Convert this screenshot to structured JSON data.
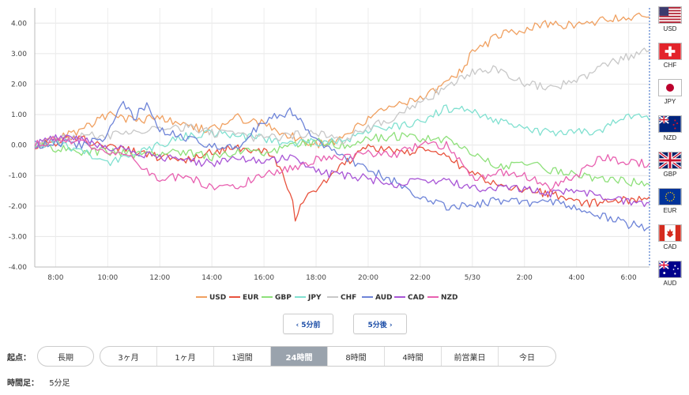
{
  "chart_data": {
    "type": "line",
    "ylim": [
      -4,
      4.5
    ],
    "y_ticks": [
      "4.00",
      "3.00",
      "2.00",
      "1.00",
      "0.00",
      "-1.00",
      "-2.00",
      "-3.00",
      "-4.00"
    ],
    "x_ticks": [
      "8:00",
      "10:00",
      "12:00",
      "14:00",
      "16:00",
      "18:00",
      "20:00",
      "22:00",
      "5/30",
      "2:00",
      "4:00",
      "6:00"
    ],
    "x_range_hours": [
      7.2,
      30.8
    ],
    "grid": true,
    "legend_position": "bottom",
    "series": [
      {
        "name": "USD",
        "color": "#f0a060",
        "values": [
          [
            7.2,
            0.0
          ],
          [
            8,
            0.2
          ],
          [
            9,
            0.5
          ],
          [
            10,
            1.0
          ],
          [
            11,
            0.8
          ],
          [
            12,
            0.9
          ],
          [
            13,
            0.6
          ],
          [
            14,
            0.5
          ],
          [
            15,
            0.9
          ],
          [
            16,
            0.7
          ],
          [
            17,
            0.3
          ],
          [
            18,
            0.0
          ],
          [
            19,
            0.2
          ],
          [
            20,
            0.9
          ],
          [
            21,
            1.3
          ],
          [
            22,
            1.5
          ],
          [
            23,
            2.0
          ],
          [
            23.5,
            2.4
          ],
          [
            24,
            3.0
          ],
          [
            25,
            3.6
          ],
          [
            26,
            3.8
          ],
          [
            27,
            4.0
          ],
          [
            28,
            3.9
          ],
          [
            29,
            4.1
          ],
          [
            30,
            4.2
          ],
          [
            30.8,
            4.2
          ]
        ]
      },
      {
        "name": "EUR",
        "color": "#e8533e",
        "values": [
          [
            7.2,
            0.0
          ],
          [
            8,
            0.1
          ],
          [
            9,
            0.2
          ],
          [
            10,
            -0.1
          ],
          [
            11,
            -0.2
          ],
          [
            12,
            -0.4
          ],
          [
            13,
            -0.5
          ],
          [
            14,
            -0.2
          ],
          [
            15,
            -0.1
          ],
          [
            16,
            -0.2
          ],
          [
            16.5,
            -0.6
          ],
          [
            17,
            -1.5
          ],
          [
            17.2,
            -2.4
          ],
          [
            17.6,
            -1.7
          ],
          [
            18,
            -1.5
          ],
          [
            19,
            -0.7
          ],
          [
            20,
            0.0
          ],
          [
            21,
            -0.2
          ],
          [
            22,
            -0.2
          ],
          [
            23,
            -0.4
          ],
          [
            24,
            -0.9
          ],
          [
            25,
            -1.3
          ],
          [
            26,
            -1.5
          ],
          [
            27,
            -1.6
          ],
          [
            28,
            -1.9
          ],
          [
            29,
            -1.9
          ],
          [
            30,
            -1.8
          ],
          [
            30.8,
            -1.7
          ]
        ]
      },
      {
        "name": "GBP",
        "color": "#8ee07a",
        "values": [
          [
            7.2,
            0.0
          ],
          [
            8,
            -0.1
          ],
          [
            9,
            -0.2
          ],
          [
            10,
            -0.2
          ],
          [
            11,
            -0.3
          ],
          [
            12,
            -0.3
          ],
          [
            13,
            -0.2
          ],
          [
            14,
            -0.4
          ],
          [
            15,
            -0.2
          ],
          [
            16,
            -0.3
          ],
          [
            17,
            0.0
          ],
          [
            18,
            0.1
          ],
          [
            19,
            0.0
          ],
          [
            20,
            0.2
          ],
          [
            21,
            0.3
          ],
          [
            22,
            0.2
          ],
          [
            23,
            0.2
          ],
          [
            24,
            -0.3
          ],
          [
            25,
            -0.7
          ],
          [
            26,
            -0.6
          ],
          [
            27,
            -0.8
          ],
          [
            28,
            -1.0
          ],
          [
            29,
            -1.1
          ],
          [
            30,
            -1.2
          ],
          [
            30.8,
            -1.3
          ]
        ]
      },
      {
        "name": "JPY",
        "color": "#80e0d0",
        "values": [
          [
            7.2,
            0.0
          ],
          [
            8,
            0.1
          ],
          [
            9,
            -0.2
          ],
          [
            10,
            -0.6
          ],
          [
            11,
            -0.3
          ],
          [
            12,
            0.0
          ],
          [
            13,
            0.3
          ],
          [
            14,
            0.4
          ],
          [
            15,
            0.3
          ],
          [
            16,
            0.2
          ],
          [
            17,
            0.0
          ],
          [
            18,
            0.1
          ],
          [
            19,
            0.1
          ],
          [
            20,
            0.5
          ],
          [
            21,
            0.6
          ],
          [
            22,
            0.8
          ],
          [
            23,
            1.2
          ],
          [
            24,
            1.1
          ],
          [
            25,
            0.8
          ],
          [
            26,
            0.5
          ],
          [
            27,
            0.4
          ],
          [
            28,
            0.4
          ],
          [
            29,
            0.5
          ],
          [
            30,
            1.0
          ],
          [
            30.8,
            0.8
          ]
        ]
      },
      {
        "name": "CHF",
        "color": "#c8c8c8",
        "values": [
          [
            7.2,
            0.0
          ],
          [
            8,
            0.2
          ],
          [
            9,
            0.3
          ],
          [
            10,
            0.3
          ],
          [
            11,
            0.4
          ],
          [
            12,
            0.5
          ],
          [
            13,
            0.6
          ],
          [
            14,
            0.4
          ],
          [
            15,
            0.3
          ],
          [
            16,
            0.2
          ],
          [
            17,
            0.3
          ],
          [
            18,
            0.4
          ],
          [
            19,
            0.1
          ],
          [
            20,
            0.6
          ],
          [
            21,
            0.9
          ],
          [
            22,
            1.4
          ],
          [
            23,
            1.9
          ],
          [
            24,
            2.4
          ],
          [
            25,
            2.5
          ],
          [
            26,
            2.0
          ],
          [
            27,
            1.9
          ],
          [
            28,
            2.1
          ],
          [
            29,
            2.6
          ],
          [
            30,
            2.9
          ],
          [
            30.8,
            3.1
          ]
        ]
      },
      {
        "name": "AUD",
        "color": "#6e84d8",
        "values": [
          [
            7.2,
            0.0
          ],
          [
            8,
            0.1
          ],
          [
            9,
            0.0
          ],
          [
            10,
            0.3
          ],
          [
            10.5,
            1.4
          ],
          [
            11,
            0.9
          ],
          [
            11.5,
            1.3
          ],
          [
            12,
            0.5
          ],
          [
            13,
            0.2
          ],
          [
            14,
            0.0
          ],
          [
            15,
            -0.1
          ],
          [
            16,
            0.8
          ],
          [
            17,
            1.1
          ],
          [
            18,
            0.2
          ],
          [
            19,
            -0.4
          ],
          [
            20,
            -0.8
          ],
          [
            21,
            -1.2
          ],
          [
            22,
            -1.8
          ],
          [
            23,
            -2.0
          ],
          [
            24,
            -2.0
          ],
          [
            25,
            -1.8
          ],
          [
            26,
            -1.9
          ],
          [
            27,
            -1.8
          ],
          [
            28,
            -2.1
          ],
          [
            29,
            -2.3
          ],
          [
            30,
            -2.6
          ],
          [
            30.8,
            -2.7
          ]
        ]
      },
      {
        "name": "CAD",
        "color": "#a855d6",
        "values": [
          [
            7.2,
            0.0
          ],
          [
            8,
            0.3
          ],
          [
            9,
            0.2
          ],
          [
            10,
            -0.1
          ],
          [
            11,
            -0.2
          ],
          [
            12,
            -0.4
          ],
          [
            13,
            -0.5
          ],
          [
            14,
            -0.6
          ],
          [
            15,
            -0.4
          ],
          [
            16,
            -0.6
          ],
          [
            17,
            -0.4
          ],
          [
            18,
            -0.9
          ],
          [
            19,
            -1.0
          ],
          [
            20,
            -1.1
          ],
          [
            21,
            -1.3
          ],
          [
            22,
            -1.1
          ],
          [
            23,
            -1.2
          ],
          [
            24,
            -1.4
          ],
          [
            25,
            -1.4
          ],
          [
            26,
            -1.4
          ],
          [
            27,
            -1.6
          ],
          [
            28,
            -1.5
          ],
          [
            29,
            -1.7
          ],
          [
            30,
            -1.9
          ],
          [
            30.8,
            -1.9
          ]
        ]
      },
      {
        "name": "NZD",
        "color": "#e860b0",
        "values": [
          [
            7.2,
            0.0
          ],
          [
            8,
            0.2
          ],
          [
            9,
            0.1
          ],
          [
            10,
            -0.2
          ],
          [
            11,
            -0.5
          ],
          [
            12,
            -1.1
          ],
          [
            13,
            -1.0
          ],
          [
            14,
            -1.4
          ],
          [
            15,
            -1.3
          ],
          [
            16,
            -1.0
          ],
          [
            17,
            -0.8
          ],
          [
            18,
            -0.5
          ],
          [
            19,
            -0.4
          ],
          [
            20,
            -0.3
          ],
          [
            21,
            -0.3
          ],
          [
            22,
            0.0
          ],
          [
            23,
            0.0
          ],
          [
            24,
            -1.1
          ],
          [
            25,
            -0.9
          ],
          [
            26,
            -1.0
          ],
          [
            27,
            -1.4
          ],
          [
            28,
            -1.0
          ],
          [
            29,
            -0.4
          ],
          [
            30,
            -0.6
          ],
          [
            30.8,
            -0.6
          ]
        ]
      }
    ]
  },
  "flags": [
    {
      "code": "USD",
      "icon": "us-flag-icon"
    },
    {
      "code": "CHF",
      "icon": "swiss-flag-icon"
    },
    {
      "code": "JPY",
      "icon": "japan-flag-icon"
    },
    {
      "code": "NZD",
      "icon": "nz-flag-icon"
    },
    {
      "code": "GBP",
      "icon": "uk-flag-icon"
    },
    {
      "code": "EUR",
      "icon": "eu-flag-icon"
    },
    {
      "code": "CAD",
      "icon": "canada-flag-icon"
    },
    {
      "code": "AUD",
      "icon": "australia-flag-icon"
    }
  ],
  "nav": {
    "prev_label": "‹ 5分前",
    "next_label": "5分後 ›"
  },
  "controls": {
    "start_label": "起点：",
    "long_label": "長期",
    "segments": [
      "3ヶ月",
      "1ヶ月",
      "1週間",
      "24時間",
      "8時間",
      "4時間",
      "前営業日",
      "今日"
    ],
    "active_segment": "24時間",
    "timeframe_label": "時間足：",
    "timeframe_value": "5分足"
  }
}
